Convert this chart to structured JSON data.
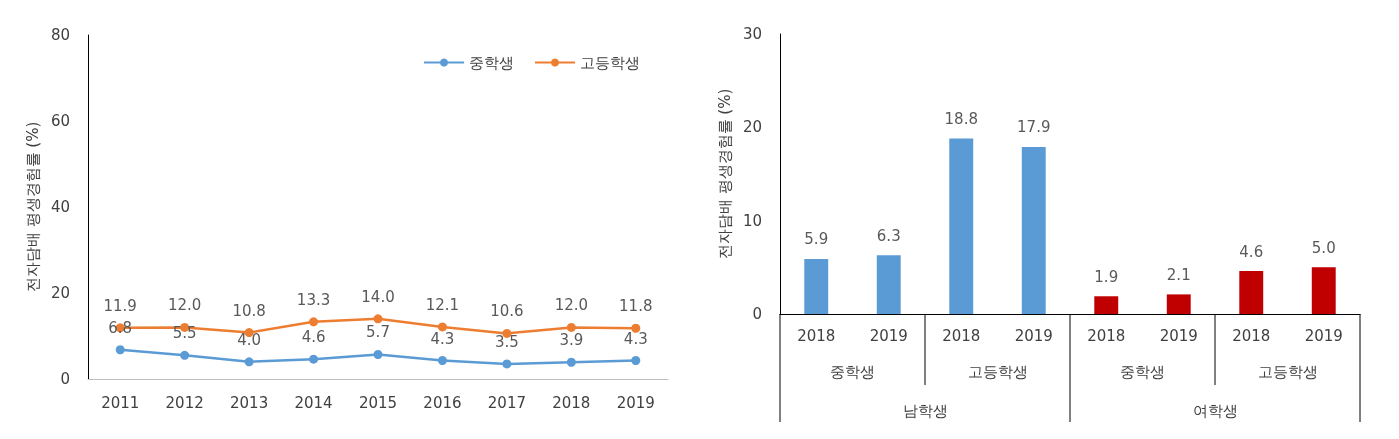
{
  "chart_data": [
    {
      "type": "line",
      "ylabel": "전자담배 평생경험률 (%)",
      "categories": [
        "2011",
        "2012",
        "2013",
        "2014",
        "2015",
        "2016",
        "2017",
        "2018",
        "2019"
      ],
      "series": [
        {
          "name": "중학생",
          "color": "#5b9bd5",
          "values": [
            6.8,
            5.5,
            4.0,
            4.6,
            5.7,
            4.3,
            3.5,
            3.9,
            4.3
          ],
          "value_labels": [
            "6.8",
            "5.5",
            "4.0",
            "4.6",
            "5.7",
            "4.3",
            "3.5",
            "3.9",
            "4.3"
          ]
        },
        {
          "name": "고등학생",
          "color": "#ed7d31",
          "values": [
            11.9,
            12.0,
            10.8,
            13.3,
            14.0,
            12.1,
            10.6,
            12.0,
            11.8
          ],
          "value_labels": [
            "11.9",
            "12.0",
            "10.8",
            "13.3",
            "14.0",
            "12.1",
            "10.6",
            "12.0",
            "11.8"
          ]
        }
      ],
      "ylim": [
        0,
        80
      ],
      "yticks": [
        0,
        20,
        40,
        60,
        80
      ],
      "grid": false,
      "legend": "top right",
      "marker": "circle"
    },
    {
      "type": "bar",
      "ylabel": "전자담배 평생경험률 (%)",
      "categories": [
        "2018",
        "2019",
        "2018",
        "2019",
        "2018",
        "2019",
        "2018",
        "2019"
      ],
      "values": [
        5.9,
        6.3,
        18.8,
        17.9,
        1.9,
        2.1,
        4.6,
        5.0
      ],
      "value_labels": [
        "5.9",
        "6.3",
        "18.8",
        "17.9",
        "1.9",
        "2.1",
        "4.6",
        "5.0"
      ],
      "colors": [
        "#5b9bd5",
        "#5b9bd5",
        "#5b9bd5",
        "#5b9bd5",
        "#c00000",
        "#c00000",
        "#c00000",
        "#c00000"
      ],
      "annotations": [
        "중학생",
        "고등학생",
        "중학생",
        "고등학생",
        "남학생",
        "여학생"
      ],
      "ylim": [
        0,
        30
      ],
      "yticks": [
        0,
        10,
        20,
        30
      ],
      "grid": false
    }
  ]
}
